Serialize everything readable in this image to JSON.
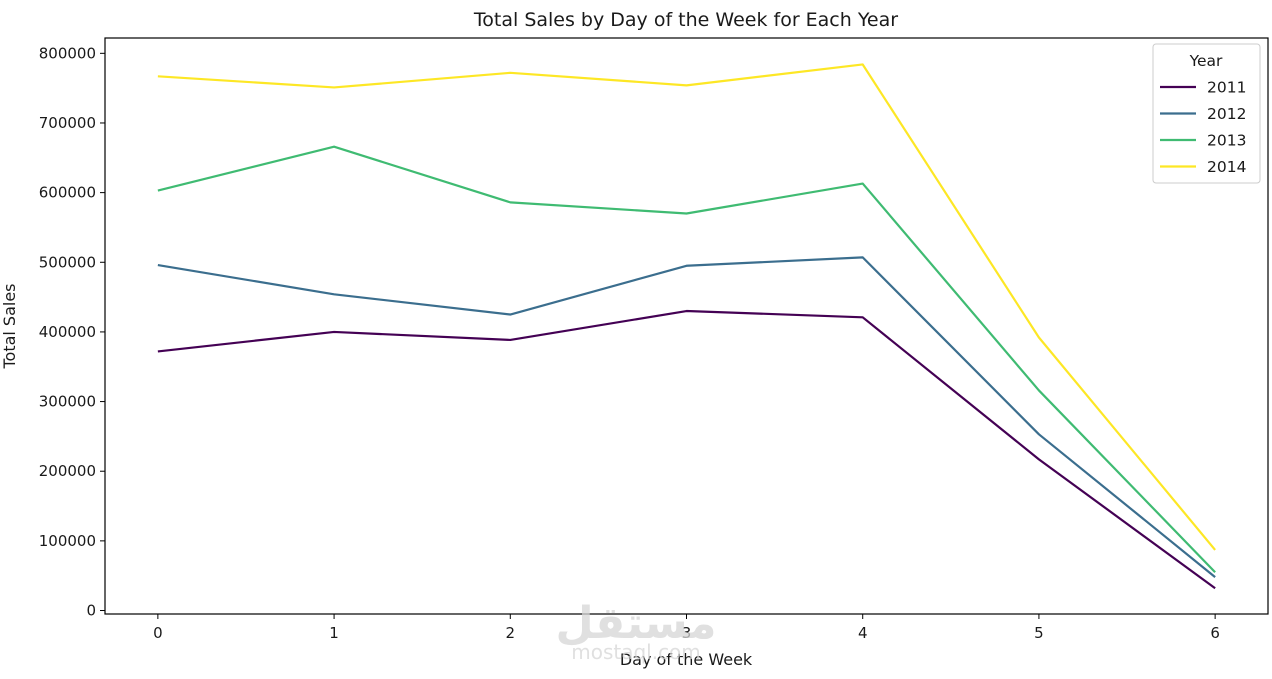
{
  "chart_data": {
    "type": "line",
    "title": "Total Sales by Day of the Week for Each Year",
    "xlabel": "Day of the Week",
    "ylabel": "Total Sales",
    "x": [
      0,
      1,
      2,
      3,
      4,
      5,
      6
    ],
    "x_ticks": [
      "0",
      "1",
      "2",
      "3",
      "4",
      "5",
      "6"
    ],
    "xlim": [
      -0.3,
      6.3
    ],
    "ylim": [
      -5000,
      822000
    ],
    "y_ticks": [
      0,
      100000,
      200000,
      300000,
      400000,
      500000,
      600000,
      700000,
      800000
    ],
    "y_tick_labels": [
      "0",
      "100000",
      "200000",
      "300000",
      "400000",
      "500000",
      "600000",
      "700000",
      "800000"
    ],
    "grid": false,
    "legend": {
      "title": "Year",
      "position": "top-right"
    },
    "series": [
      {
        "name": "2011",
        "color": "#440154",
        "values": [
          372000,
          400000,
          388500,
          430000,
          421000,
          217000,
          32000
        ]
      },
      {
        "name": "2012",
        "color": "#3b6e8e",
        "values": [
          496000,
          454000,
          425000,
          495000,
          507000,
          253000,
          48000
        ]
      },
      {
        "name": "2013",
        "color": "#3fbb72",
        "values": [
          603000,
          666000,
          586000,
          570000,
          613000,
          316000,
          55000
        ]
      },
      {
        "name": "2014",
        "color": "#fde725",
        "values": [
          767000,
          751000,
          772000,
          754000,
          784000,
          392000,
          87000
        ]
      }
    ]
  },
  "watermark": {
    "arabic": "مستقل",
    "latin": "mostaql.com"
  }
}
